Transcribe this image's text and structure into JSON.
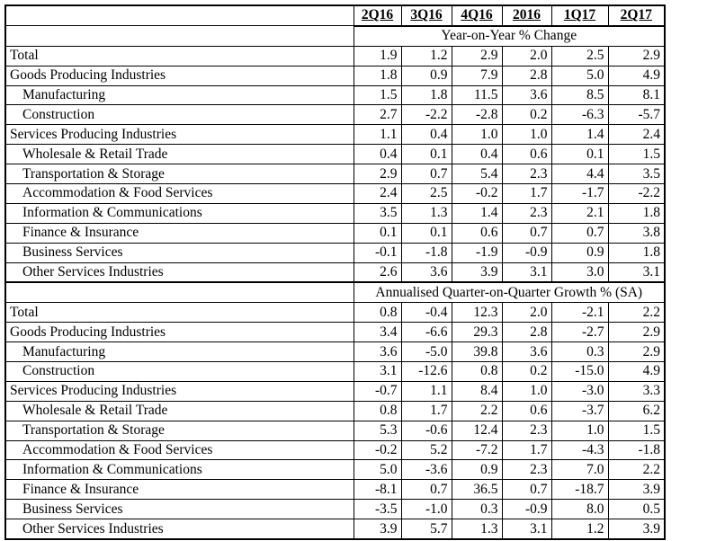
{
  "headers": [
    "2Q16",
    "3Q16",
    "4Q16",
    "2016",
    "1Q17",
    "2Q17"
  ],
  "sections": [
    {
      "title": "Year-on-Year % Change",
      "rows": [
        {
          "label": "Total",
          "indent": false,
          "values": [
            "1.9",
            "1.2",
            "2.9",
            "2.0",
            "2.5",
            "2.9"
          ]
        },
        {
          "label": "Goods Producing Industries",
          "indent": false,
          "values": [
            "1.8",
            "0.9",
            "7.9",
            "2.8",
            "5.0",
            "4.9"
          ]
        },
        {
          "label": "Manufacturing",
          "indent": true,
          "values": [
            "1.5",
            "1.8",
            "11.5",
            "3.6",
            "8.5",
            "8.1"
          ]
        },
        {
          "label": "Construction",
          "indent": true,
          "values": [
            "2.7",
            "-2.2",
            "-2.8",
            "0.2",
            "-6.3",
            "-5.7"
          ]
        },
        {
          "label": "Services Producing Industries",
          "indent": false,
          "values": [
            "1.1",
            "0.4",
            "1.0",
            "1.0",
            "1.4",
            "2.4"
          ]
        },
        {
          "label": "Wholesale & Retail Trade",
          "indent": true,
          "values": [
            "0.4",
            "0.1",
            "0.4",
            "0.6",
            "0.1",
            "1.5"
          ]
        },
        {
          "label": "Transportation & Storage",
          "indent": true,
          "values": [
            "2.9",
            "0.7",
            "5.4",
            "2.3",
            "4.4",
            "3.5"
          ]
        },
        {
          "label": "Accommodation & Food Services",
          "indent": true,
          "values": [
            "2.4",
            "2.5",
            "-0.2",
            "1.7",
            "-1.7",
            "-2.2"
          ]
        },
        {
          "label": "Information & Communications",
          "indent": true,
          "values": [
            "3.5",
            "1.3",
            "1.4",
            "2.3",
            "2.1",
            "1.8"
          ]
        },
        {
          "label": "Finance & Insurance",
          "indent": true,
          "values": [
            "0.1",
            "0.1",
            "0.6",
            "0.7",
            "0.7",
            "3.8"
          ]
        },
        {
          "label": "Business Services",
          "indent": true,
          "values": [
            "-0.1",
            "-1.8",
            "-1.9",
            "-0.9",
            "0.9",
            "1.8"
          ]
        },
        {
          "label": "Other Services Industries",
          "indent": true,
          "values": [
            "2.6",
            "3.6",
            "3.9",
            "3.1",
            "3.0",
            "3.1"
          ]
        }
      ]
    },
    {
      "title": "Annualised Quarter-on-Quarter Growth % (SA)",
      "rows": [
        {
          "label": "Total",
          "indent": false,
          "values": [
            "0.8",
            "-0.4",
            "12.3",
            "2.0",
            "-2.1",
            "2.2"
          ]
        },
        {
          "label": "Goods Producing Industries",
          "indent": false,
          "values": [
            "3.4",
            "-6.6",
            "29.3",
            "2.8",
            "-2.7",
            "2.9"
          ]
        },
        {
          "label": "Manufacturing",
          "indent": true,
          "values": [
            "3.6",
            "-5.0",
            "39.8",
            "3.6",
            "0.3",
            "2.9"
          ]
        },
        {
          "label": "Construction",
          "indent": true,
          "values": [
            "3.1",
            "-12.6",
            "0.8",
            "0.2",
            "-15.0",
            "4.9"
          ]
        },
        {
          "label": "Services Producing Industries",
          "indent": false,
          "values": [
            "-0.7",
            "1.1",
            "8.4",
            "1.0",
            "-3.0",
            "3.3"
          ]
        },
        {
          "label": "Wholesale & Retail Trade",
          "indent": true,
          "values": [
            "0.8",
            "1.7",
            "2.2",
            "0.6",
            "-3.7",
            "6.2"
          ]
        },
        {
          "label": "Transportation & Storage",
          "indent": true,
          "values": [
            "5.3",
            "-0.6",
            "12.4",
            "2.3",
            "1.0",
            "1.5"
          ]
        },
        {
          "label": "Accommodation & Food Services",
          "indent": true,
          "values": [
            "-0.2",
            "5.2",
            "-7.2",
            "1.7",
            "-4.3",
            "-1.8"
          ]
        },
        {
          "label": "Information & Communications",
          "indent": true,
          "values": [
            "5.0",
            "-3.6",
            "0.9",
            "2.3",
            "7.0",
            "2.2"
          ]
        },
        {
          "label": "Finance & Insurance",
          "indent": true,
          "values": [
            "-8.1",
            "0.7",
            "36.5",
            "0.7",
            "-18.7",
            "3.9"
          ]
        },
        {
          "label": "Business Services",
          "indent": true,
          "values": [
            "-3.5",
            "-1.0",
            "0.3",
            "-0.9",
            "8.0",
            "0.5"
          ]
        },
        {
          "label": "Other Services Industries",
          "indent": true,
          "values": [
            "3.9",
            "5.7",
            "1.3",
            "3.1",
            "1.2",
            "3.9"
          ]
        }
      ]
    }
  ]
}
